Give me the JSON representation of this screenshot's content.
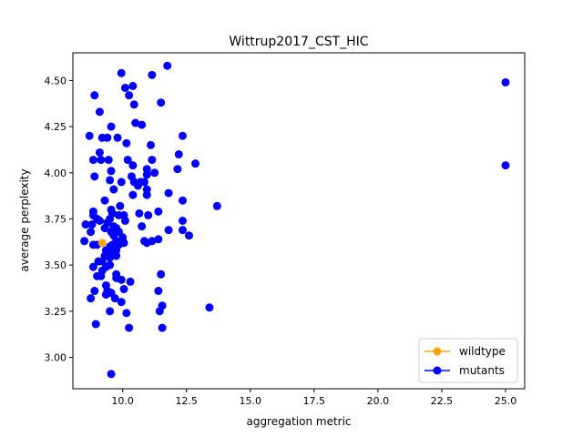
{
  "chart_data": {
    "type": "scatter",
    "title": "Wittrup2017_CST_HIC",
    "xlabel": "aggregation metric",
    "ylabel": "average perplexity",
    "xlim": [
      8.05,
      25.75
    ],
    "ylim": [
      2.83,
      4.65
    ],
    "x_ticks": [
      10.0,
      12.5,
      15.0,
      17.5,
      20.0,
      22.5,
      25.0
    ],
    "x_tick_labels": [
      "10.0",
      "12.5",
      "15.0",
      "17.5",
      "20.0",
      "22.5",
      "25.0"
    ],
    "y_ticks": [
      3.0,
      3.25,
      3.5,
      3.75,
      4.0,
      4.25,
      4.5
    ],
    "y_tick_labels": [
      "3.00",
      "3.25",
      "3.50",
      "3.75",
      "4.00",
      "4.25",
      "4.50"
    ],
    "grid": false,
    "legend_position": "bottom-right",
    "series": [
      {
        "name": "wildtype",
        "color": "#ffa500",
        "marker": "circle",
        "points": [
          [
            9.2,
            3.62
          ]
        ]
      },
      {
        "name": "mutants",
        "color": "#0000ff",
        "marker": "circle",
        "points": [
          [
            25.0,
            4.49
          ],
          [
            25.0,
            4.04
          ],
          [
            9.95,
            4.54
          ],
          [
            11.15,
            4.53
          ],
          [
            11.75,
            4.58
          ],
          [
            8.9,
            4.42
          ],
          [
            10.1,
            4.46
          ],
          [
            10.4,
            4.47
          ],
          [
            10.25,
            4.42
          ],
          [
            11.5,
            4.38
          ],
          [
            10.45,
            4.37
          ],
          [
            9.1,
            4.33
          ],
          [
            10.5,
            4.27
          ],
          [
            10.75,
            4.26
          ],
          [
            9.55,
            4.25
          ],
          [
            8.7,
            4.2
          ],
          [
            9.2,
            4.19
          ],
          [
            9.4,
            4.19
          ],
          [
            9.8,
            4.19
          ],
          [
            12.35,
            4.2
          ],
          [
            10.15,
            4.16
          ],
          [
            11.1,
            4.15
          ],
          [
            9.1,
            4.11
          ],
          [
            12.2,
            4.1
          ],
          [
            8.85,
            4.07
          ],
          [
            9.15,
            4.07
          ],
          [
            9.45,
            4.07
          ],
          [
            10.2,
            4.07
          ],
          [
            11.15,
            4.07
          ],
          [
            10.4,
            4.04
          ],
          [
            12.85,
            4.05
          ],
          [
            9.55,
            4.01
          ],
          [
            10.95,
            4.02
          ],
          [
            12.15,
            4.02
          ],
          [
            11.25,
            4.0
          ],
          [
            8.9,
            3.98
          ],
          [
            10.35,
            3.98
          ],
          [
            10.95,
            3.99
          ],
          [
            9.5,
            3.96
          ],
          [
            9.95,
            3.95
          ],
          [
            10.45,
            3.95
          ],
          [
            10.7,
            3.95
          ],
          [
            10.85,
            3.95
          ],
          [
            10.6,
            3.93
          ],
          [
            9.65,
            3.91
          ],
          [
            10.4,
            3.88
          ],
          [
            10.95,
            3.88
          ],
          [
            11.8,
            3.89
          ],
          [
            10.95,
            3.91
          ],
          [
            12.35,
            3.85
          ],
          [
            9.3,
            3.85
          ],
          [
            9.9,
            3.82
          ],
          [
            13.7,
            3.82
          ],
          [
            9.55,
            3.8
          ],
          [
            9.85,
            3.77
          ],
          [
            9.6,
            3.78
          ],
          [
            10.65,
            3.78
          ],
          [
            10.05,
            3.77
          ],
          [
            11.0,
            3.77
          ],
          [
            11.4,
            3.79
          ],
          [
            8.85,
            3.79
          ],
          [
            8.85,
            3.77
          ],
          [
            9.5,
            3.75
          ],
          [
            9.0,
            3.75
          ],
          [
            9.1,
            3.74
          ],
          [
            9.4,
            3.73
          ],
          [
            10.1,
            3.74
          ],
          [
            12.35,
            3.74
          ],
          [
            8.55,
            3.72
          ],
          [
            8.8,
            3.72
          ],
          [
            9.3,
            3.7
          ],
          [
            9.65,
            3.71
          ],
          [
            9.75,
            3.7
          ],
          [
            10.75,
            3.71
          ],
          [
            8.75,
            3.68
          ],
          [
            9.55,
            3.68
          ],
          [
            9.85,
            3.68
          ],
          [
            11.8,
            3.69
          ],
          [
            12.35,
            3.69
          ],
          [
            12.6,
            3.66
          ],
          [
            9.65,
            3.66
          ],
          [
            9.75,
            3.63
          ],
          [
            10.05,
            3.62
          ],
          [
            10.0,
            3.65
          ],
          [
            9.85,
            3.61
          ],
          [
            11.15,
            3.63
          ],
          [
            11.4,
            3.64
          ],
          [
            10.85,
            3.63
          ],
          [
            10.95,
            3.62
          ],
          [
            8.5,
            3.63
          ],
          [
            8.85,
            3.61
          ],
          [
            9.0,
            3.61
          ],
          [
            9.6,
            3.61
          ],
          [
            9.35,
            3.58
          ],
          [
            9.5,
            3.6
          ],
          [
            9.75,
            3.58
          ],
          [
            9.65,
            3.56
          ],
          [
            9.55,
            3.57
          ],
          [
            9.3,
            3.55
          ],
          [
            9.5,
            3.54
          ],
          [
            9.75,
            3.55
          ],
          [
            9.2,
            3.52
          ],
          [
            9.05,
            3.52
          ],
          [
            8.85,
            3.49
          ],
          [
            9.35,
            3.49
          ],
          [
            9.5,
            3.5
          ],
          [
            9.2,
            3.47
          ],
          [
            9.15,
            3.44
          ],
          [
            9.0,
            3.44
          ],
          [
            9.75,
            3.45
          ],
          [
            9.75,
            3.43
          ],
          [
            9.95,
            3.42
          ],
          [
            10.3,
            3.41
          ],
          [
            11.5,
            3.45
          ],
          [
            9.35,
            3.39
          ],
          [
            10.05,
            3.37
          ],
          [
            9.4,
            3.36
          ],
          [
            9.55,
            3.35
          ],
          [
            8.9,
            3.36
          ],
          [
            11.4,
            3.36
          ],
          [
            9.35,
            3.34
          ],
          [
            9.7,
            3.32
          ],
          [
            9.95,
            3.3
          ],
          [
            8.75,
            3.32
          ],
          [
            11.55,
            3.28
          ],
          [
            10.15,
            3.24
          ],
          [
            9.5,
            3.25
          ],
          [
            11.45,
            3.25
          ],
          [
            13.4,
            3.27
          ],
          [
            8.95,
            3.18
          ],
          [
            10.25,
            3.16
          ],
          [
            11.55,
            3.16
          ],
          [
            9.55,
            2.91
          ]
        ]
      }
    ]
  }
}
